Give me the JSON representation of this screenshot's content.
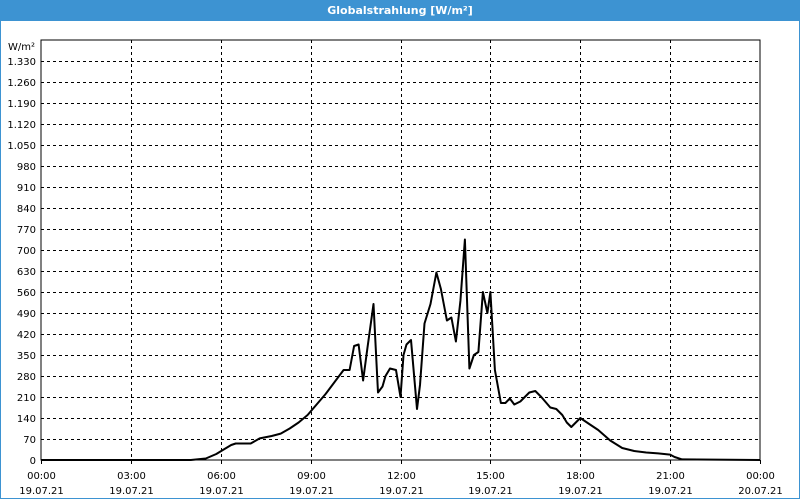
{
  "window": {
    "title": "Globalstrahlung [W/m²]"
  },
  "chart_data": {
    "type": "line",
    "title": "Globalstrahlung [W/m²]",
    "ylabel": "W/m²",
    "xlabel": "",
    "ylim": [
      0,
      1400
    ],
    "yticks": [
      0,
      70,
      140,
      210,
      280,
      350,
      420,
      490,
      560,
      630,
      700,
      770,
      840,
      910,
      980,
      1050,
      1120,
      1190,
      1260,
      1330
    ],
    "ytick_labels": [
      "0",
      "70",
      "140",
      "210",
      "280",
      "350",
      "420",
      "490",
      "560",
      "630",
      "700",
      "770",
      "840",
      "910",
      "980",
      "1.050",
      "1.120",
      "1.190",
      "1.260",
      "1.330"
    ],
    "xlim": [
      0,
      24
    ],
    "xticks": [
      {
        "hour": 0,
        "time": "00:00",
        "date": "19.07.21"
      },
      {
        "hour": 3,
        "time": "03:00",
        "date": "19.07.21"
      },
      {
        "hour": 6,
        "time": "06:00",
        "date": "19.07.21"
      },
      {
        "hour": 9,
        "time": "09:00",
        "date": "19.07.21"
      },
      {
        "hour": 12,
        "time": "12:00",
        "date": "19.07.21"
      },
      {
        "hour": 15,
        "time": "15:00",
        "date": "19.07.21"
      },
      {
        "hour": 18,
        "time": "18:00",
        "date": "19.07.21"
      },
      {
        "hour": 21,
        "time": "21:00",
        "date": "19.07.21"
      },
      {
        "hour": 24,
        "time": "00:00",
        "date": "20.07.21"
      }
    ],
    "grid": true,
    "series": [
      {
        "color": "#000000",
        "x": [
          0,
          5.0,
          5.5,
          5.85,
          6.1,
          6.35,
          6.5,
          6.7,
          7.0,
          7.3,
          7.7,
          8.0,
          8.3,
          8.6,
          8.9,
          9.2,
          9.5,
          9.8,
          10.1,
          10.3,
          10.45,
          10.6,
          10.75,
          10.9,
          11.1,
          11.25,
          11.4,
          11.5,
          11.65,
          11.85,
          12.0,
          12.1,
          12.2,
          12.35,
          12.55,
          12.65,
          12.8,
          13.0,
          13.2,
          13.35,
          13.55,
          13.7,
          13.85,
          14.0,
          14.15,
          14.3,
          14.45,
          14.6,
          14.75,
          14.9,
          15.0,
          15.15,
          15.35,
          15.5,
          15.65,
          15.8,
          16.0,
          16.3,
          16.5,
          16.7,
          17.0,
          17.2,
          17.4,
          17.55,
          17.7,
          18.0,
          18.3,
          18.6,
          19.0,
          19.4,
          19.8,
          20.2,
          20.6,
          21.0,
          21.15,
          21.4,
          24.0
        ],
        "y": [
          0,
          0,
          5,
          20,
          35,
          50,
          55,
          55,
          55,
          72,
          80,
          88,
          105,
          125,
          150,
          185,
          220,
          260,
          300,
          300,
          380,
          385,
          265,
          375,
          520,
          225,
          245,
          280,
          305,
          300,
          210,
          350,
          385,
          400,
          170,
          250,
          455,
          520,
          625,
          570,
          465,
          475,
          395,
          530,
          735,
          305,
          350,
          360,
          560,
          490,
          560,
          300,
          190,
          190,
          205,
          185,
          195,
          225,
          230,
          210,
          175,
          170,
          150,
          125,
          110,
          140,
          120,
          100,
          65,
          40,
          30,
          25,
          22,
          18,
          10,
          2,
          0
        ]
      }
    ]
  }
}
